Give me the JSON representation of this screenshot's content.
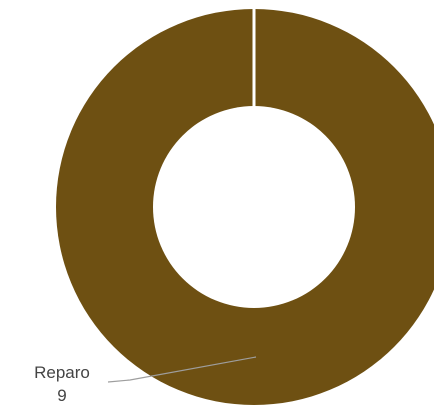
{
  "chart_data": {
    "type": "pie",
    "donut": true,
    "title": "",
    "slices": [
      {
        "label": "Reparo",
        "value": 9,
        "color": "#6e5012"
      }
    ],
    "colors": {
      "slice_border": "#ffffff",
      "leader_line": "#9e9e9e",
      "label_text": "#444444"
    }
  }
}
